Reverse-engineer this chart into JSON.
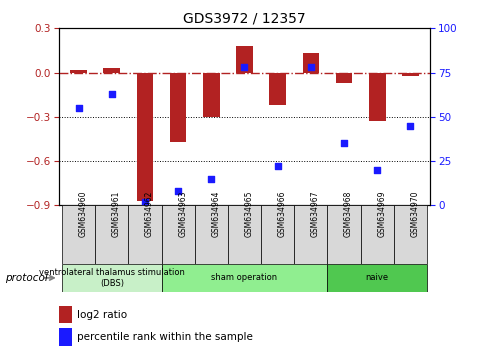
{
  "title": "GDS3972 / 12357",
  "samples": [
    "GSM634960",
    "GSM634961",
    "GSM634962",
    "GSM634963",
    "GSM634964",
    "GSM634965",
    "GSM634966",
    "GSM634967",
    "GSM634968",
    "GSM634969",
    "GSM634970"
  ],
  "log2_ratio": [
    0.02,
    0.03,
    -0.87,
    -0.47,
    -0.3,
    0.18,
    -0.22,
    0.13,
    -0.07,
    -0.33,
    -0.02
  ],
  "percentile_rank": [
    55,
    63,
    2,
    8,
    15,
    78,
    22,
    78,
    35,
    20,
    45
  ],
  "bar_color": "#b22222",
  "dot_color": "#1a1aff",
  "ylim_left": [
    -0.9,
    0.3
  ],
  "ylim_right": [
    0,
    100
  ],
  "yticks_left": [
    -0.9,
    -0.6,
    -0.3,
    0.0,
    0.3
  ],
  "yticks_right": [
    0,
    25,
    50,
    75,
    100
  ],
  "hline_y": 0.0,
  "dotted_lines": [
    -0.3,
    -0.6
  ],
  "group_data": [
    {
      "label": "ventrolateral thalamus stimulation\n(DBS)",
      "start": 0,
      "end": 2,
      "color": "#c8f0c8"
    },
    {
      "label": "sham operation",
      "start": 3,
      "end": 7,
      "color": "#90ee90"
    },
    {
      "label": "naive",
      "start": 8,
      "end": 10,
      "color": "#50c850"
    }
  ],
  "group_label_prefix": "protocol",
  "legend_bar_label": "log2 ratio",
  "legend_dot_label": "percentile rank within the sample",
  "bar_width": 0.5,
  "n_samples": 11
}
